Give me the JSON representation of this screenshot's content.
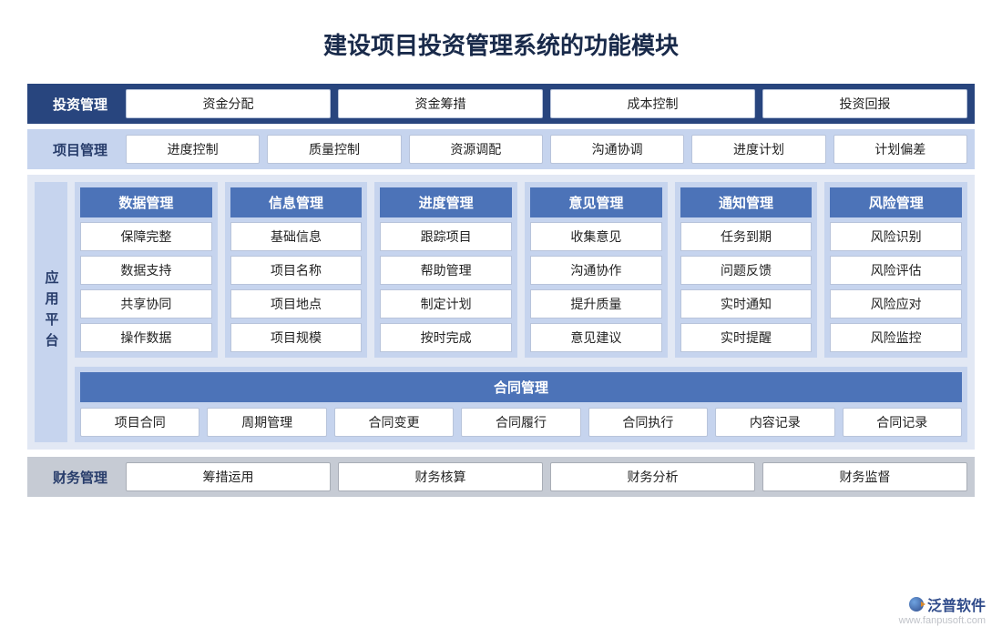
{
  "title": "建设项目投资管理系统的功能模块",
  "colors": {
    "dark_bar": "#28457e",
    "light_bar": "#c6d4ee",
    "grey_bar": "#c6cbd4",
    "platform_bg": "#e2e8f4",
    "col_header": "#4c73b8",
    "text_dark": "#283d6b",
    "pill_bg": "#ffffff",
    "pill_border": "#b8c4db"
  },
  "rows": {
    "investment": {
      "label": "投资管理",
      "style": "dark",
      "items": [
        "资金分配",
        "资金筹措",
        "成本控制",
        "投资回报"
      ]
    },
    "project": {
      "label": "项目管理",
      "style": "light",
      "items": [
        "进度控制",
        "质量控制",
        "资源调配",
        "沟通协调",
        "进度计划",
        "计划偏差"
      ]
    },
    "finance": {
      "label": "财务管理",
      "style": "grey",
      "items": [
        "筹措运用",
        "财务核算",
        "财务分析",
        "财务监督"
      ]
    }
  },
  "platform": {
    "label": "应用平台",
    "columns": [
      {
        "header": "数据管理",
        "items": [
          "保障完整",
          "数据支持",
          "共享协同",
          "操作数据"
        ]
      },
      {
        "header": "信息管理",
        "items": [
          "基础信息",
          "项目名称",
          "项目地点",
          "项目规模"
        ]
      },
      {
        "header": "进度管理",
        "items": [
          "跟踪项目",
          "帮助管理",
          "制定计划",
          "按时完成"
        ]
      },
      {
        "header": "意见管理",
        "items": [
          "收集意见",
          "沟通协作",
          "提升质量",
          "意见建议"
        ]
      },
      {
        "header": "通知管理",
        "items": [
          "任务到期",
          "问题反馈",
          "实时通知",
          "实时提醒"
        ]
      },
      {
        "header": "风险管理",
        "items": [
          "风险识别",
          "风险评估",
          "风险应对",
          "风险监控"
        ]
      }
    ],
    "contract": {
      "header": "合同管理",
      "items": [
        "项目合同",
        "周期管理",
        "合同变更",
        "合同履行",
        "合同执行",
        "内容记录",
        "合同记录"
      ]
    }
  },
  "watermark": {
    "brand": "泛普软件",
    "url": "www.fanpusoft.com"
  }
}
